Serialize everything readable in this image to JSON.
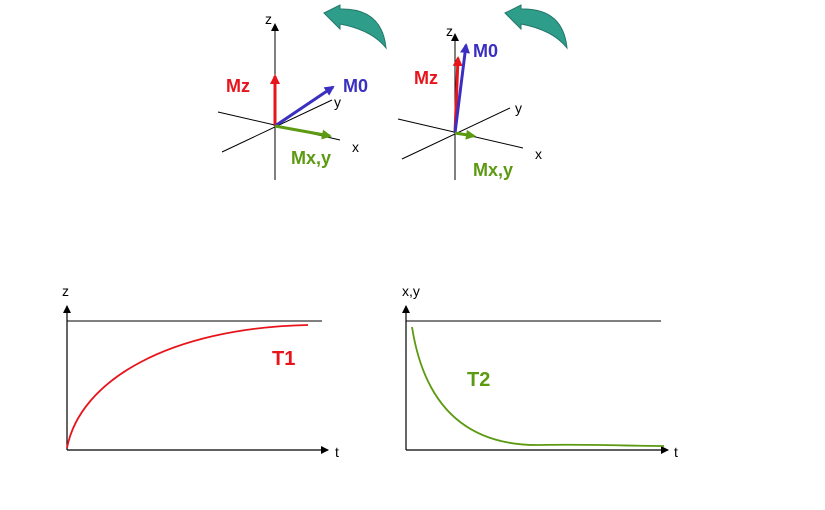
{
  "colors": {
    "red": "#e8141c",
    "blue": "#3a2fc0",
    "green": "#5c9a12",
    "teal": "#2e9d8a",
    "axis": "#000000"
  },
  "vectors": {
    "left": {
      "mz": "Mz",
      "m0": "M0",
      "mxy": "Mx,y",
      "z": "z",
      "y": "y",
      "x": "x"
    },
    "right": {
      "mz": "Mz",
      "m0": "M0",
      "mxy": "Mx,y",
      "z": "z",
      "y": "y",
      "x": "x"
    }
  },
  "rotation_icon": "curved-arrow-icon",
  "t1_graph": {
    "y_label": "z",
    "x_label": "t",
    "curve_label": "T1"
  },
  "t2_graph": {
    "y_label": "x,y",
    "x_label": "t",
    "curve_label": "T2"
  }
}
